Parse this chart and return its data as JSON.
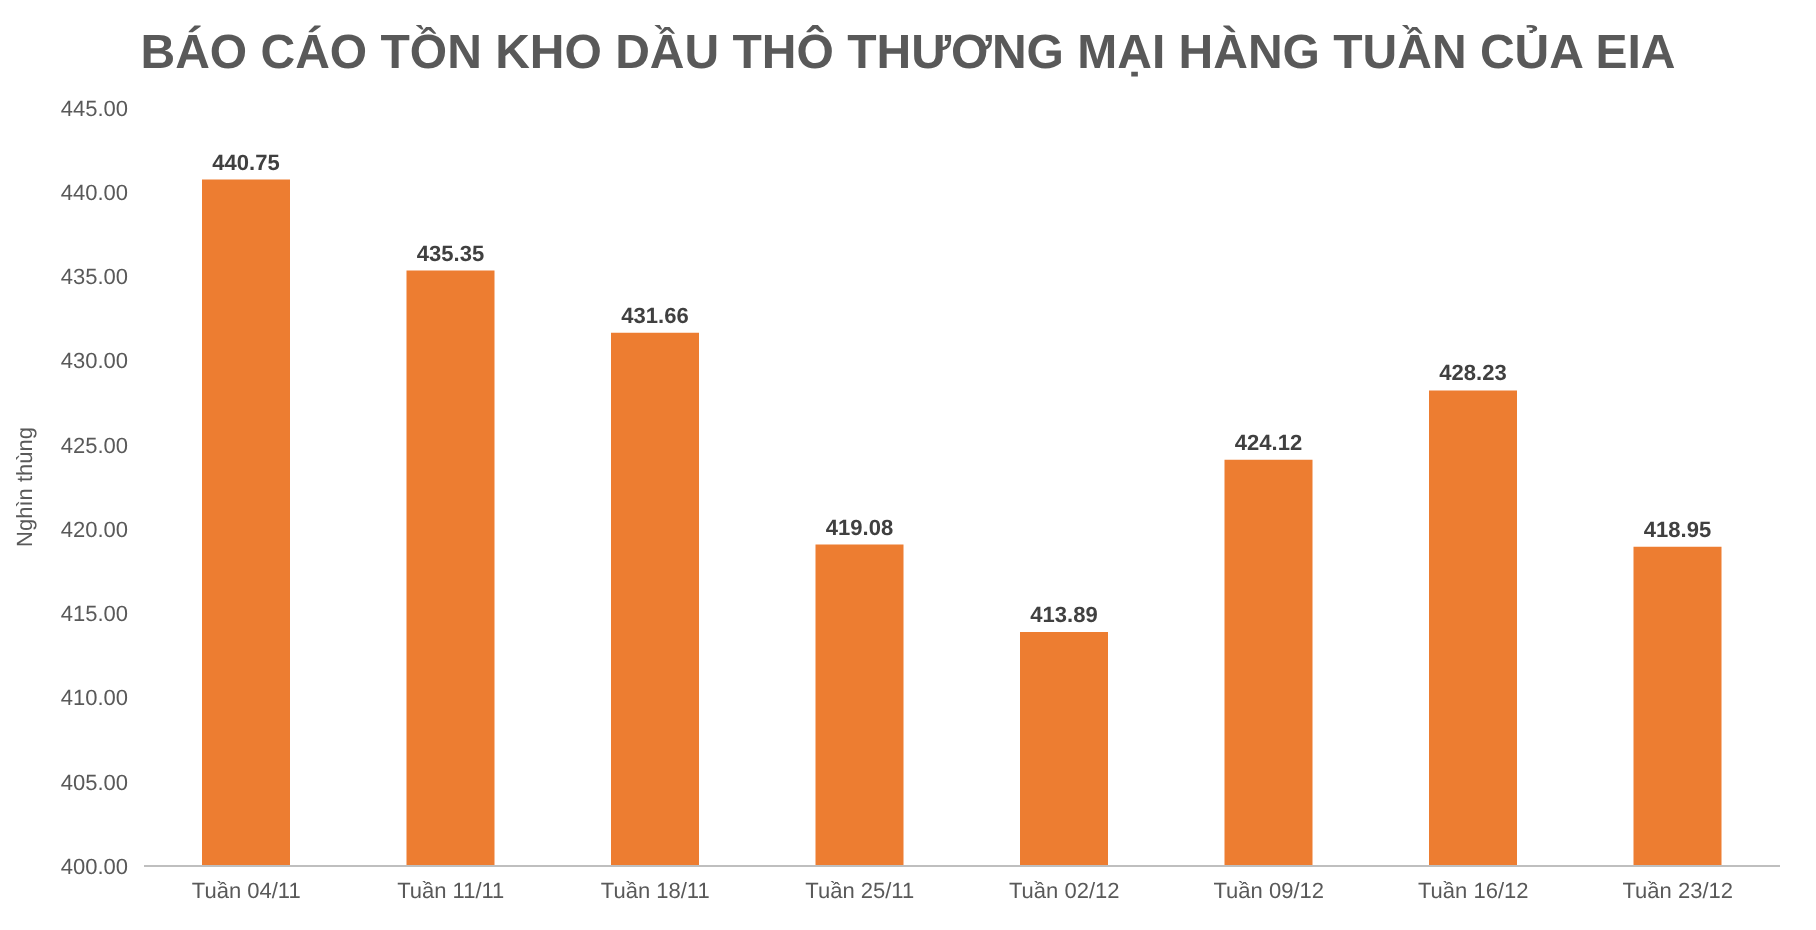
{
  "chart_data": {
    "type": "bar",
    "title": "BÁO CÁO TỒN KHO DẦU THÔ THƯƠNG MẠI HÀNG TUẦN CỦA EIA",
    "ylabel": "Nghìn thùng",
    "categories": [
      "Tuần 04/11",
      "Tuần 11/11",
      "Tuần 18/11",
      "Tuần 25/11",
      "Tuần 02/12",
      "Tuần 09/12",
      "Tuần 16/12",
      "Tuần 23/12"
    ],
    "values": [
      440.75,
      435.35,
      431.66,
      419.08,
      413.89,
      424.12,
      428.23,
      418.95
    ],
    "color": "#ed7d31",
    "ylim": [
      400,
      445
    ],
    "yticks": [
      {
        "value": 400,
        "label": "400.00"
      },
      {
        "value": 405,
        "label": "405.00"
      },
      {
        "value": 410,
        "label": "410.00"
      },
      {
        "value": 415,
        "label": "415.00"
      },
      {
        "value": 420,
        "label": "420.00"
      },
      {
        "value": 425,
        "label": "425.00"
      },
      {
        "value": 430,
        "label": "430.00"
      },
      {
        "value": 435,
        "label": "435.00"
      },
      {
        "value": 440,
        "label": "440.00"
      },
      {
        "value": 445,
        "label": "445.00"
      }
    ],
    "data_labels": true
  }
}
